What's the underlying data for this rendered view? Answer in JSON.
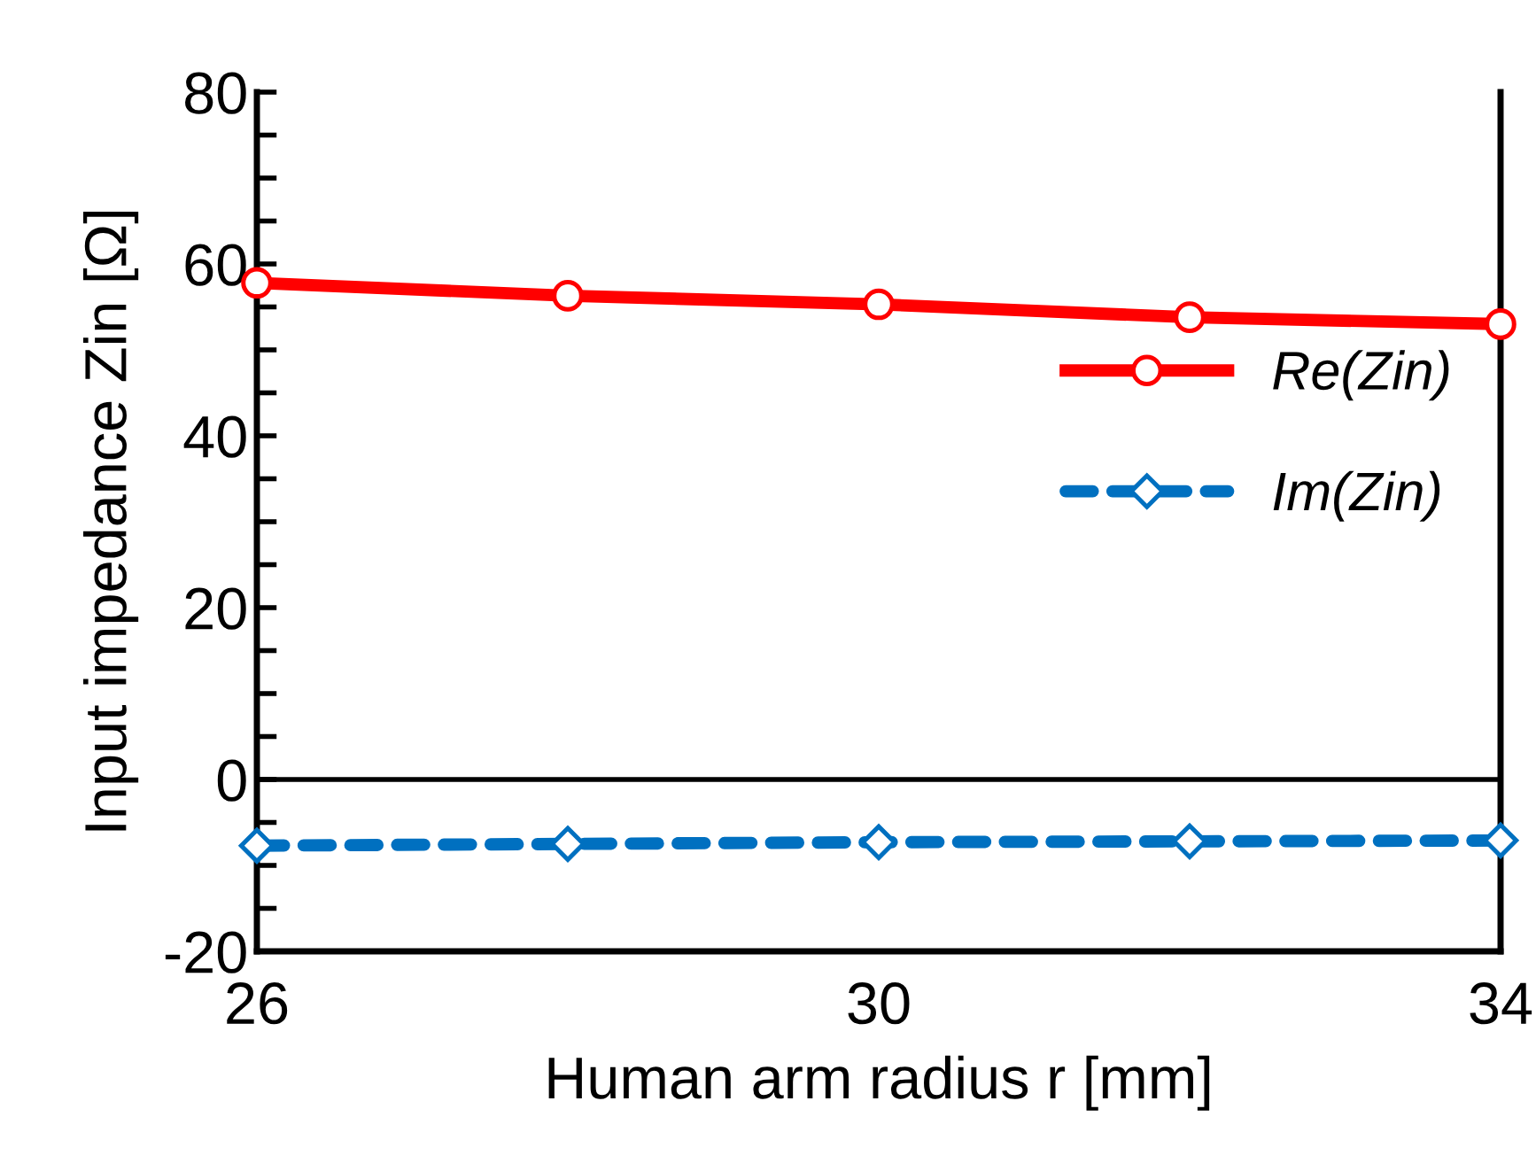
{
  "chart_data": {
    "type": "line",
    "xlabel": "Human arm radius r [mm]",
    "ylabel": "Input impedance Zin [Ω]",
    "x": [
      26,
      28,
      30,
      32,
      34
    ],
    "series": [
      {
        "name": "Re(Zin)",
        "color": "#ff0000",
        "values": [
          57.8,
          56.3,
          55.3,
          53.8,
          53.0
        ],
        "marker": "circle",
        "line_style": "solid"
      },
      {
        "name": "Im(Zin)",
        "color": "#0070c0",
        "values": [
          -7.7,
          -7.5,
          -7.3,
          -7.2,
          -7.1
        ],
        "marker": "diamond",
        "line_style": "dashed"
      }
    ],
    "xlim": [
      26,
      34
    ],
    "xticks": [
      26,
      30,
      34
    ],
    "ylim": [
      -20,
      80
    ],
    "yticks": [
      -20,
      {
        "value": -15,
        "label": null
      },
      {
        "value": -10,
        "label": null
      },
      {
        "value": -5,
        "label": null
      },
      0,
      {
        "value": 5,
        "label": null
      },
      {
        "value": 10,
        "label": null
      },
      {
        "value": 15,
        "label": null
      },
      20,
      {
        "value": 25,
        "label": null
      },
      {
        "value": 30,
        "label": null
      },
      {
        "value": 35,
        "label": null
      },
      40,
      {
        "value": 45,
        "label": null
      },
      {
        "value": 50,
        "label": null
      },
      {
        "value": 55,
        "label": null
      },
      60,
      {
        "value": 65,
        "label": null
      },
      {
        "value": 70,
        "label": null
      },
      {
        "value": 75,
        "label": null
      },
      80
    ],
    "ref_lines": [
      {
        "axis": "y",
        "value": 0,
        "color": "#000000",
        "line_style": "solid"
      }
    ],
    "grid": false,
    "legend": "right"
  }
}
